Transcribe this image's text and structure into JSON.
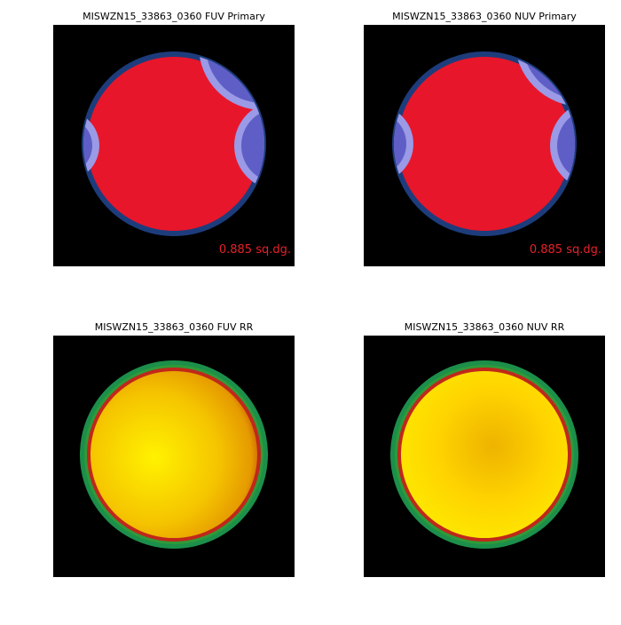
{
  "panels": [
    {
      "title": "MISWZN15_33863_0360 FUV Primary",
      "area": "0.885 sq.dg."
    },
    {
      "title": "MISWZN15_33863_0360 NUV Primary",
      "area": "0.885 sq.dg."
    },
    {
      "title": "MISWZN15_33863_0360 FUV RR"
    },
    {
      "title": "MISWZN15_33863_0360 NUV RR"
    }
  ]
}
